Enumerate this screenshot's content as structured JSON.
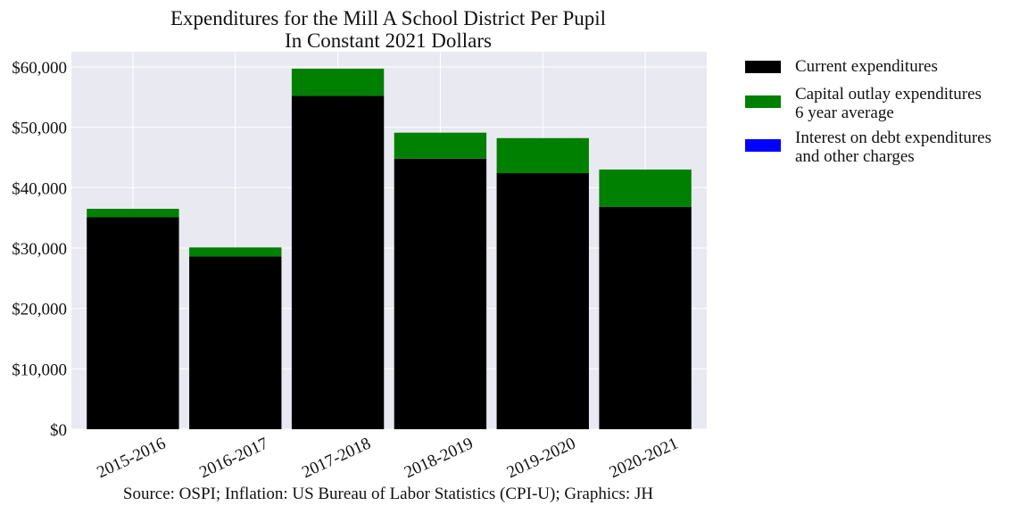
{
  "chart_data": {
    "type": "bar",
    "stacked": true,
    "title": "Expenditures for the Mill A School District Per Pupil",
    "subtitle": "In Constant 2021 Dollars",
    "xlabel": "",
    "ylabel": "",
    "categories": [
      "2015-2016",
      "2016-2017",
      "2017-2018",
      "2018-2019",
      "2019-2020",
      "2020-2021"
    ],
    "series": [
      {
        "name": "Current expenditures",
        "color": "#000000",
        "values": [
          35100,
          28600,
          55200,
          44800,
          42400,
          36800
        ]
      },
      {
        "name": "Capital outlay expenditures\n6 year average",
        "color": "#008000",
        "values": [
          1400,
          1500,
          4500,
          4300,
          5800,
          6200
        ]
      },
      {
        "name": "Interest on debt expenditures\nand other charges",
        "color": "#0000ff",
        "values": [
          0,
          0,
          0,
          0,
          0,
          0
        ]
      }
    ],
    "ylim": [
      0,
      62500
    ],
    "yticks": [
      0,
      10000,
      20000,
      30000,
      40000,
      50000,
      60000
    ],
    "ytick_labels": [
      "$0",
      "$10,000",
      "$20,000",
      "$30,000",
      "$40,000",
      "$50,000",
      "$60,000"
    ],
    "grid": true,
    "legend_position": "outside-right-top",
    "source": "Source: OSPI; Inflation: US Bureau of Labor Statistics (CPI-U); Graphics: JH"
  },
  "colors": {
    "plot_background": "#e9e9f2",
    "grid": "#ffffff"
  }
}
